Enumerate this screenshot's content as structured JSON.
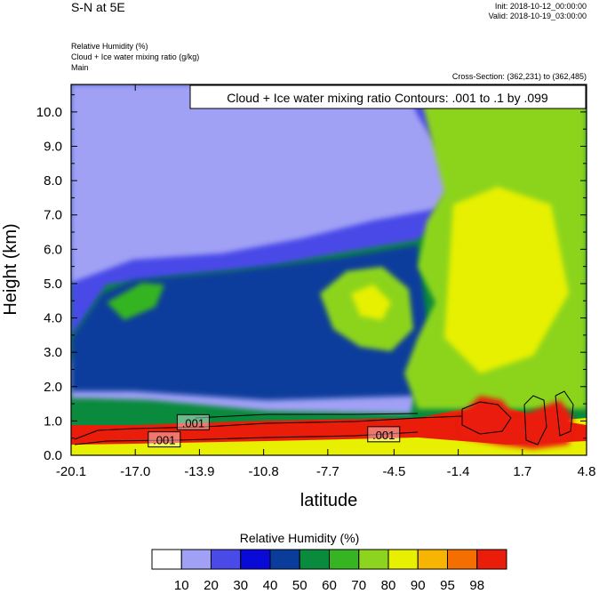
{
  "header": {
    "title": "S-N at 5E",
    "init": "Init: 2018-10-12_00:00:00",
    "valid": "Valid: 2018-10-19_03:00:00",
    "fields": [
      "Relative Humidity   (%)",
      "Cloud + Ice water mixing ratio   (g/kg)",
      "Main"
    ],
    "cross_section": "Cross-Section: (362,231) to (362,485)"
  },
  "chart_data": {
    "type": "heatmap",
    "title": "S-N at 5E",
    "xlabel": "latitude",
    "ylabel": "Height (km)",
    "xlim": [
      -20.1,
      4.8
    ],
    "ylim": [
      0.0,
      10.8
    ],
    "x_ticks": [
      "-20.1",
      "-17.0",
      "-13.9",
      "-10.8",
      "-7.7",
      "-4.5",
      "-1.4",
      "1.7",
      "4.8"
    ],
    "x_tick_values": [
      -20.1,
      -17.0,
      -13.9,
      -10.8,
      -7.7,
      -4.5,
      -1.4,
      1.7,
      4.8
    ],
    "y_ticks": [
      "0.0",
      "1.0",
      "2.0",
      "3.0",
      "4.0",
      "5.0",
      "6.0",
      "7.0",
      "8.0",
      "9.0",
      "10.0"
    ],
    "y_tick_values": [
      0,
      1,
      2,
      3,
      4,
      5,
      6,
      7,
      8,
      9,
      10
    ],
    "contour_label": "Cloud + Ice water mixing ratio Contours: .001 to .1 by .099",
    "contour_line_labels": [
      {
        "text": ".001",
        "lat": -14.2,
        "height": 0.95
      },
      {
        "text": ".001",
        "lat": -15.6,
        "height": 0.45
      },
      {
        "text": ".001",
        "lat": -5.0,
        "height": 0.6
      }
    ],
    "colorbar": {
      "title": "Relative Humidity  (%)",
      "levels": [
        "10",
        "20",
        "30",
        "40",
        "50",
        "60",
        "70",
        "80",
        "90",
        "95",
        "98"
      ],
      "colors": [
        "#ffffff",
        "#a0a0f5",
        "#4a4ae8",
        "#0a0ad8",
        "#0a3c9c",
        "#0a8a3c",
        "#36b422",
        "#8cd41e",
        "#e6f000",
        "#f7b400",
        "#f46e00",
        "#ea1c0a"
      ]
    },
    "field": {
      "name": "Relative Humidity",
      "units": "%",
      "regions": [
        {
          "name": "surface-band",
          "class": 80
        },
        {
          "name": "low-level-moist-band",
          "class": 98
        },
        {
          "name": "upper-left-light",
          "class": 20
        },
        {
          "name": "dry-layer-upper",
          "class": 10
        },
        {
          "name": "dry-layer-lower",
          "class": 10
        },
        {
          "name": "mid-blue-tongue",
          "class": 40
        },
        {
          "name": "green-blob-center",
          "class": 70
        },
        {
          "name": "green-blob-left",
          "class": 60
        },
        {
          "name": "north-moist-column",
          "class": 70
        },
        {
          "name": "north-convective-cells",
          "class": 98
        }
      ]
    }
  }
}
